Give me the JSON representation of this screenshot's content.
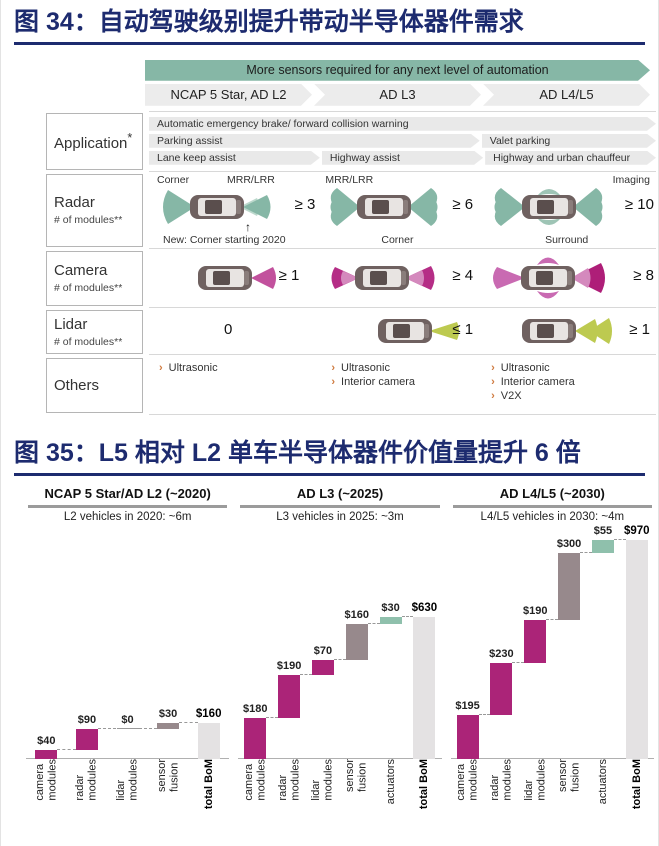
{
  "colors": {
    "navy": "#1d2b6f",
    "teal": "#86b7a6",
    "chevron_gray": "#ececec",
    "magenta": "#ab2478",
    "magenta_light": "#cd76b4",
    "fusion_gray": "#97898c",
    "actuator_teal": "#8fc0ac",
    "total_gray": "#e4e2e3",
    "lidar_green": "#bdca50",
    "bullet_orange": "#cf7a3f"
  },
  "fig34": {
    "title": "图 34：自动驾驶级别提升带动半导体器件需求",
    "banner": "More sensors required for any next level of automation",
    "levels": [
      "NCAP 5 Star, AD L2",
      "AD L3",
      "AD L4/L5"
    ],
    "application": {
      "label": "Application",
      "label_sup": "*",
      "rows": [
        [
          {
            "text": "Automatic emergency brake/ forward collision warning"
          }
        ],
        [
          {
            "text": "Parking assist"
          },
          {
            "text": "Valet parking"
          }
        ],
        [
          {
            "text": "Lane keep assist"
          },
          {
            "text": "Highway assist"
          },
          {
            "text": "Highway and urban chauffeur"
          }
        ]
      ]
    },
    "radar": {
      "label": "Radar",
      "sublabel": "# of modules**",
      "cells": [
        {
          "top_labels": [
            "Corner",
            "MRR/LRR"
          ],
          "value": "≥ 3",
          "note": "New: Corner starting 2020",
          "note_arrow": "↑"
        },
        {
          "top_labels": [
            "MRR/LRR"
          ],
          "value": "≥ 6",
          "note": "Corner"
        },
        {
          "top_labels": [
            "Imaging"
          ],
          "value": "≥ 10",
          "note": "Surround"
        }
      ]
    },
    "camera": {
      "label": "Camera",
      "sublabel": "# of modules**",
      "cells": [
        {
          "value": "≥ 1"
        },
        {
          "value": "≥ 4"
        },
        {
          "value": "≥ 8"
        }
      ]
    },
    "lidar": {
      "label": "Lidar",
      "sublabel": "# of modules**",
      "cells": [
        {
          "value": "0"
        },
        {
          "value": "≤ 1"
        },
        {
          "value": "≥ 1"
        }
      ]
    },
    "others": {
      "label": "Others",
      "cells": [
        [
          "Ultrasonic"
        ],
        [
          "Ultrasonic",
          "Interior camera"
        ],
        [
          "Ultrasonic",
          "Interior camera",
          "V2X"
        ]
      ]
    }
  },
  "fig35": {
    "title": "图 35：L5 相对 L2 单车半导体器件价值量提升 6 倍"
  },
  "chart_data": [
    {
      "type": "waterfall",
      "title": "NCAP 5 Star/AD L2 (~2020)",
      "subtitle": "L2 vehicles in 2020: ~6m",
      "categories": [
        "camera modules",
        "radar modules",
        "lidar modules",
        "sensor fusion",
        "total BoM"
      ],
      "values": [
        40,
        90,
        0,
        30,
        160
      ],
      "labels": [
        "$40",
        "$90",
        "$0",
        "$30",
        "$160"
      ],
      "kinds": [
        "module",
        "module",
        "module",
        "fusion",
        "total"
      ],
      "total": 160,
      "ylim": [
        0,
        1000
      ],
      "grid": false,
      "legend": false
    },
    {
      "type": "waterfall",
      "title": "AD L3 (~2025)",
      "subtitle": "L3 vehicles in 2025: ~3m",
      "categories": [
        "camera modules",
        "radar modules",
        "lidar modules",
        "sensor fusion",
        "actuators",
        "total BoM"
      ],
      "values": [
        180,
        190,
        70,
        160,
        30,
        630
      ],
      "labels": [
        "$180",
        "$190",
        "$70",
        "$160",
        "$30",
        "$630"
      ],
      "kinds": [
        "module",
        "module",
        "module",
        "fusion",
        "actuator",
        "total"
      ],
      "total": 630,
      "ylim": [
        0,
        1000
      ],
      "grid": false,
      "legend": false
    },
    {
      "type": "waterfall",
      "title": "AD L4/L5 (~2030)",
      "subtitle": "L4/L5 vehicles in 2030: ~4m",
      "categories": [
        "camera modules",
        "radar modules",
        "lidar modules",
        "sensor fusion",
        "actuators",
        "total BoM"
      ],
      "values": [
        195,
        230,
        190,
        300,
        55,
        970
      ],
      "labels": [
        "$195",
        "$230",
        "$190",
        "$300",
        "$55",
        "$970"
      ],
      "kinds": [
        "module",
        "module",
        "module",
        "fusion",
        "actuator",
        "total"
      ],
      "total": 970,
      "ylim": [
        0,
        1000
      ],
      "grid": false,
      "legend": false
    }
  ]
}
